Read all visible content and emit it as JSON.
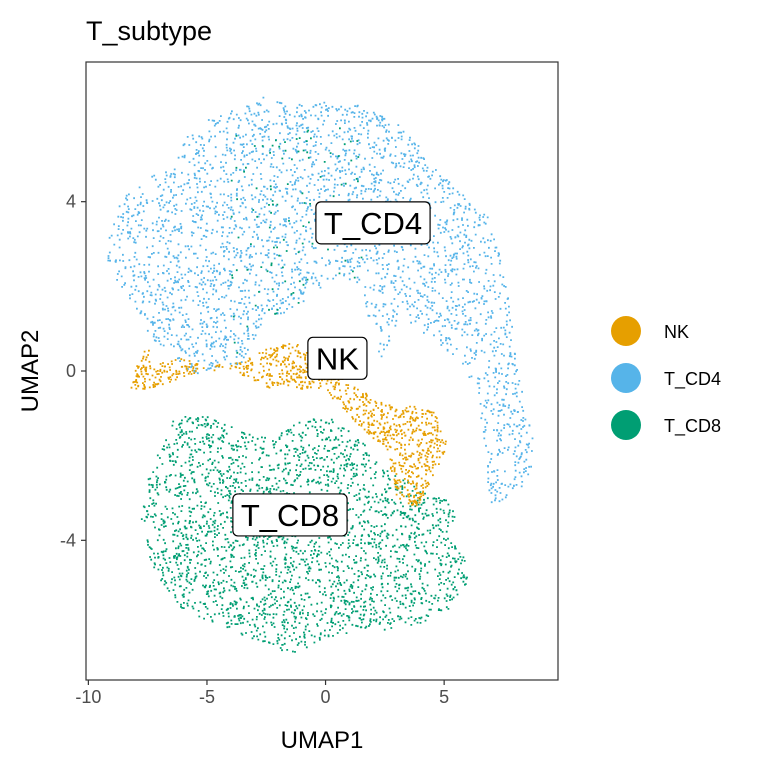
{
  "chart_data": {
    "type": "scatter",
    "title": "T_subtype",
    "xlabel": "UMAP1",
    "ylabel": "UMAP2",
    "xlim": [
      -10.1,
      9.8
    ],
    "ylim": [
      -7.3,
      7.3
    ],
    "x_ticks": [
      -10,
      -5,
      0,
      5
    ],
    "x_tick_labels": [
      "-10",
      "-5",
      "0",
      "5"
    ],
    "y_ticks": [
      -4,
      0,
      4
    ],
    "y_tick_labels": [
      "-4",
      "0",
      "4"
    ],
    "grid": false,
    "legend_position": "right",
    "series": [
      {
        "name": "NK",
        "color": "#E69F00"
      },
      {
        "name": "T_CD4",
        "color": "#56B4E9"
      },
      {
        "name": "T_CD8",
        "color": "#009E73"
      }
    ],
    "cluster_labels": [
      {
        "text": "T_CD4",
        "x": 2.0,
        "y": 3.5
      },
      {
        "text": "NK",
        "x": 0.5,
        "y": 0.3
      },
      {
        "text": "T_CD8",
        "x": -1.5,
        "y": -3.4
      }
    ],
    "regions": [
      {
        "series": "T_CD4",
        "outline": [
          [
            -9.2,
            3.2
          ],
          [
            -8.6,
            4.1
          ],
          [
            -7.5,
            4.6
          ],
          [
            -6.5,
            4.8
          ],
          [
            -6.0,
            5.5
          ],
          [
            -5.2,
            5.9
          ],
          [
            -3.5,
            6.3
          ],
          [
            -2.7,
            6.5
          ],
          [
            -1.5,
            6.3
          ],
          [
            0.0,
            6.4
          ],
          [
            1.5,
            6.3
          ],
          [
            2.8,
            6.0
          ],
          [
            3.8,
            5.4
          ],
          [
            4.6,
            4.8
          ],
          [
            5.6,
            4.3
          ],
          [
            6.8,
            3.7
          ],
          [
            7.6,
            2.2
          ],
          [
            8.0,
            0.2
          ],
          [
            8.7,
            -1.6
          ],
          [
            8.6,
            -2.5
          ],
          [
            8.0,
            -2.9
          ],
          [
            7.0,
            -3.2
          ],
          [
            6.6,
            -2.0
          ],
          [
            6.5,
            -0.8
          ],
          [
            5.9,
            0.0
          ],
          [
            4.5,
            0.8
          ],
          [
            3.2,
            1.2
          ],
          [
            2.3,
            0.3
          ],
          [
            1.4,
            2.0
          ],
          [
            0.5,
            2.3
          ],
          [
            -0.8,
            1.7
          ],
          [
            -2.8,
            1.0
          ],
          [
            -3.6,
            0.2
          ],
          [
            -5.6,
            -0.1
          ],
          [
            -6.7,
            0.5
          ],
          [
            -7.8,
            1.0
          ],
          [
            -8.7,
            2.0
          ],
          [
            -9.2,
            2.6
          ]
        ]
      },
      {
        "series": "T_CD8",
        "outline": [
          [
            -6.5,
            -1.1
          ],
          [
            -5.0,
            -1.0
          ],
          [
            -3.6,
            -1.4
          ],
          [
            -2.3,
            -1.6
          ],
          [
            -1.2,
            -1.2
          ],
          [
            0.0,
            -1.0
          ],
          [
            1.5,
            -1.6
          ],
          [
            2.2,
            -2.2
          ],
          [
            3.8,
            -2.7
          ],
          [
            5.0,
            -3.0
          ],
          [
            5.6,
            -3.4
          ],
          [
            5.2,
            -3.9
          ],
          [
            5.6,
            -4.2
          ],
          [
            6.0,
            -4.6
          ],
          [
            5.9,
            -5.0
          ],
          [
            5.2,
            -5.6
          ],
          [
            4.3,
            -5.9
          ],
          [
            2.6,
            -6.1
          ],
          [
            1.4,
            -6.1
          ],
          [
            0.0,
            -6.3
          ],
          [
            -1.6,
            -6.7
          ],
          [
            -2.8,
            -6.4
          ],
          [
            -4.5,
            -6.0
          ],
          [
            -6.1,
            -5.6
          ],
          [
            -7.4,
            -4.6
          ],
          [
            -7.8,
            -3.5
          ],
          [
            -7.5,
            -2.5
          ]
        ]
      },
      {
        "series": "NK",
        "outline": [
          [
            -8.3,
            -0.3
          ],
          [
            -7.8,
            0.4
          ],
          [
            -7.5,
            0.6
          ],
          [
            -7.4,
            0.1
          ],
          [
            -6.1,
            0.4
          ],
          [
            -4.7,
            0.0
          ],
          [
            -3.6,
            0.3
          ],
          [
            -2.2,
            0.6
          ],
          [
            -1.2,
            0.7
          ],
          [
            0.2,
            0.1
          ],
          [
            1.0,
            -0.3
          ],
          [
            2.1,
            -0.6
          ],
          [
            3.0,
            -0.9
          ],
          [
            3.6,
            -0.8
          ],
          [
            4.8,
            -1.0
          ],
          [
            5.1,
            -1.7
          ],
          [
            4.5,
            -2.6
          ],
          [
            3.8,
            -3.2
          ],
          [
            3.0,
            -3.0
          ],
          [
            2.5,
            -1.8
          ],
          [
            1.7,
            -1.5
          ],
          [
            0.6,
            -0.8
          ],
          [
            -0.4,
            -0.4
          ],
          [
            -1.6,
            -0.4
          ],
          [
            -2.5,
            -0.4
          ],
          [
            -4.6,
            0.2
          ],
          [
            -6.3,
            -0.2
          ],
          [
            -7.5,
            -0.4
          ],
          [
            -8.2,
            -0.4
          ]
        ]
      }
    ]
  }
}
